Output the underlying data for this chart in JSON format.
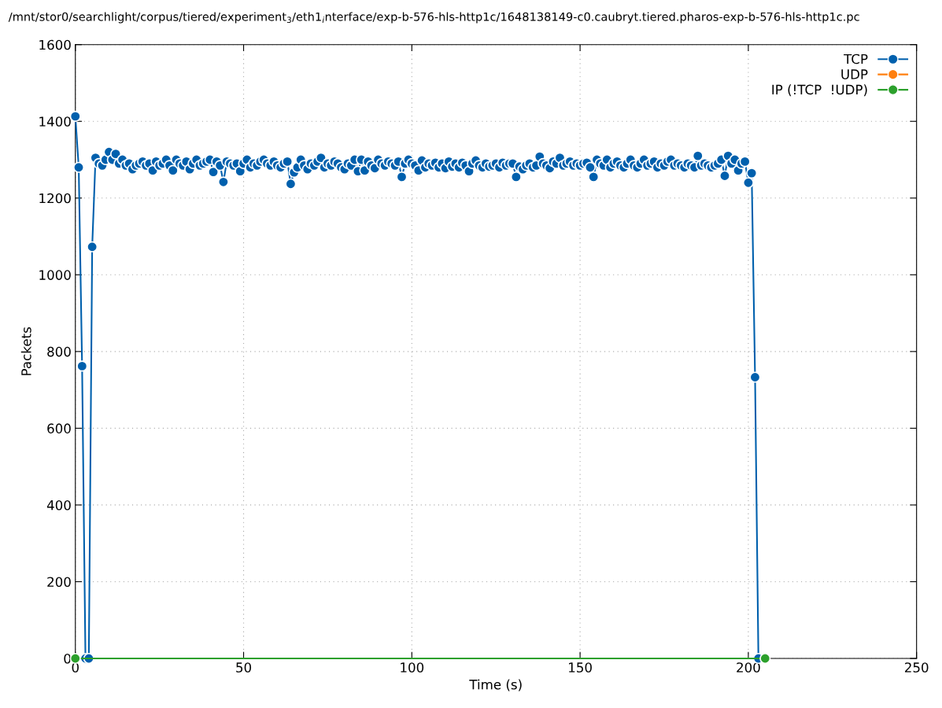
{
  "chart_data": {
    "type": "line",
    "title": "/mnt/stor0/searchlight/corpus/tiered/experiment$_{3}$/eth1$_{i}$nterface/exp-b-576-hls-http1c/1648138149-c0.caubryt.tiered.pharos-exp-b-576-hls-http1c.pc",
    "xlabel": "Time (s)",
    "ylabel": "Packets",
    "series": [
      {
        "name": "TCP",
        "color": "#0060ad",
        "x": [
          0,
          1,
          2,
          3,
          4,
          5,
          6,
          7,
          8,
          9,
          10,
          11,
          12,
          13,
          14,
          15,
          16,
          17,
          18,
          19,
          20,
          21,
          22,
          23,
          24,
          25,
          26,
          27,
          28,
          29,
          30,
          31,
          32,
          33,
          34,
          35,
          36,
          37,
          38,
          39,
          40,
          41,
          42,
          43,
          44,
          45,
          46,
          47,
          48,
          49,
          50,
          51,
          52,
          53,
          54,
          55,
          56,
          57,
          58,
          59,
          60,
          61,
          62,
          63,
          64,
          65,
          66,
          67,
          68,
          69,
          70,
          71,
          72,
          73,
          74,
          75,
          76,
          77,
          78,
          79,
          80,
          81,
          82,
          83,
          84,
          85,
          86,
          87,
          88,
          89,
          90,
          91,
          92,
          93,
          94,
          95,
          96,
          97,
          98,
          99,
          100,
          101,
          102,
          103,
          104,
          105,
          106,
          107,
          108,
          109,
          110,
          111,
          112,
          113,
          114,
          115,
          116,
          117,
          118,
          119,
          120,
          121,
          122,
          123,
          124,
          125,
          126,
          127,
          128,
          129,
          130,
          131,
          132,
          133,
          134,
          135,
          136,
          137,
          138,
          139,
          140,
          141,
          142,
          143,
          144,
          145,
          146,
          147,
          148,
          149,
          150,
          151,
          152,
          153,
          154,
          155,
          156,
          157,
          158,
          159,
          160,
          161,
          162,
          163,
          164,
          165,
          166,
          167,
          168,
          169,
          170,
          171,
          172,
          173,
          174,
          175,
          176,
          177,
          178,
          179,
          180,
          181,
          182,
          183,
          184,
          185,
          186,
          187,
          188,
          189,
          190,
          191,
          192,
          193,
          194,
          195,
          196,
          197,
          198,
          199,
          200,
          201,
          202,
          203
        ],
        "values": [
          1413,
          1280,
          762,
          0,
          0,
          1073,
          1305,
          1290,
          1285,
          1300,
          1320,
          1300,
          1315,
          1290,
          1300,
          1285,
          1290,
          1275,
          1285,
          1290,
          1295,
          1285,
          1290,
          1272,
          1295,
          1285,
          1290,
          1300,
          1285,
          1272,
          1300,
          1290,
          1285,
          1295,
          1275,
          1290,
          1300,
          1285,
          1290,
          1295,
          1300,
          1268,
          1295,
          1285,
          1242,
          1295,
          1290,
          1285,
          1290,
          1270,
          1290,
          1300,
          1280,
          1290,
          1285,
          1295,
          1300,
          1290,
          1285,
          1295,
          1285,
          1280,
          1290,
          1295,
          1237,
          1267,
          1280,
          1300,
          1285,
          1275,
          1290,
          1285,
          1295,
          1305,
          1280,
          1290,
          1285,
          1295,
          1290,
          1280,
          1275,
          1290,
          1285,
          1300,
          1270,
          1300,
          1272,
          1295,
          1285,
          1278,
          1300,
          1290,
          1285,
          1295,
          1290,
          1285,
          1295,
          1255,
          1290,
          1300,
          1290,
          1285,
          1272,
          1298,
          1280,
          1290,
          1285,
          1292,
          1280,
          1290,
          1278,
          1295,
          1282,
          1290,
          1280,
          1292,
          1285,
          1270,
          1290,
          1298,
          1285,
          1280,
          1290,
          1282,
          1285,
          1290,
          1280,
          1292,
          1285,
          1290,
          1290,
          1255,
          1282,
          1275,
          1285,
          1290,
          1280,
          1285,
          1308,
          1290,
          1285,
          1278,
          1295,
          1290,
          1305,
          1285,
          1290,
          1295,
          1285,
          1290,
          1285,
          1290,
          1292,
          1280,
          1255,
          1300,
          1290,
          1285,
          1300,
          1280,
          1290,
          1295,
          1285,
          1280,
          1290,
          1300,
          1285,
          1280,
          1290,
          1300,
          1285,
          1290,
          1295,
          1280,
          1290,
          1285,
          1295,
          1300,
          1285,
          1290,
          1285,
          1280,
          1290,
          1285,
          1280,
          1310,
          1285,
          1290,
          1285,
          1280,
          1285,
          1290,
          1300,
          1258,
          1310,
          1290,
          1300,
          1272,
          1290,
          1295,
          1240,
          1265,
          733,
          0
        ]
      },
      {
        "name": "UDP",
        "color": "#ff7f0e"
      },
      {
        "name": "IP (!TCP  !UDP)",
        "color": "#2ca02c",
        "x": [
          0,
          205
        ],
        "values": [
          0,
          0
        ]
      }
    ],
    "xlim": [
      0,
      250
    ],
    "xticks": [
      0,
      50,
      100,
      150,
      200,
      250
    ],
    "ylim": [
      0,
      1600
    ],
    "yticks": [
      0,
      200,
      400,
      600,
      800,
      1000,
      1200,
      1400,
      1600
    ],
    "grid": true,
    "legend": "top right",
    "marker": "circle",
    "line_style": "solid"
  }
}
